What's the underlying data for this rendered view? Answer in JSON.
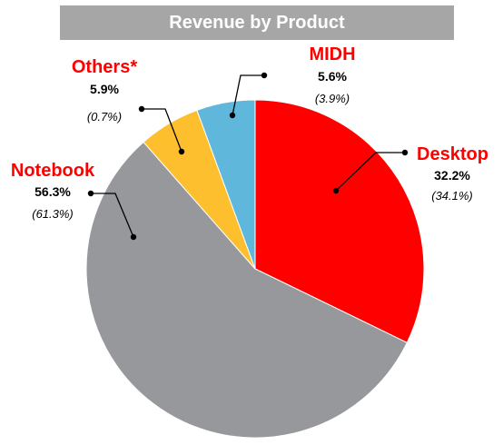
{
  "chart_data": {
    "type": "pie",
    "title": "Revenue by Product",
    "slices": [
      {
        "name": "Desktop",
        "value": 32.2,
        "label": "32.2%",
        "prior": "(34.1%)",
        "color": "#ff0000"
      },
      {
        "name": "Notebook",
        "value": 56.3,
        "label": "56.3%",
        "prior": "(61.3%)",
        "color": "#97989b"
      },
      {
        "name": "Others*",
        "value": 5.9,
        "label": "5.9%",
        "prior": "(0.7%)",
        "color": "#fdbf2d"
      },
      {
        "name": "MIDH",
        "value": 5.6,
        "label": "5.6%",
        "prior": "(3.9%)",
        "color": "#5fb8dc"
      }
    ],
    "label_color": "#ff0000"
  }
}
